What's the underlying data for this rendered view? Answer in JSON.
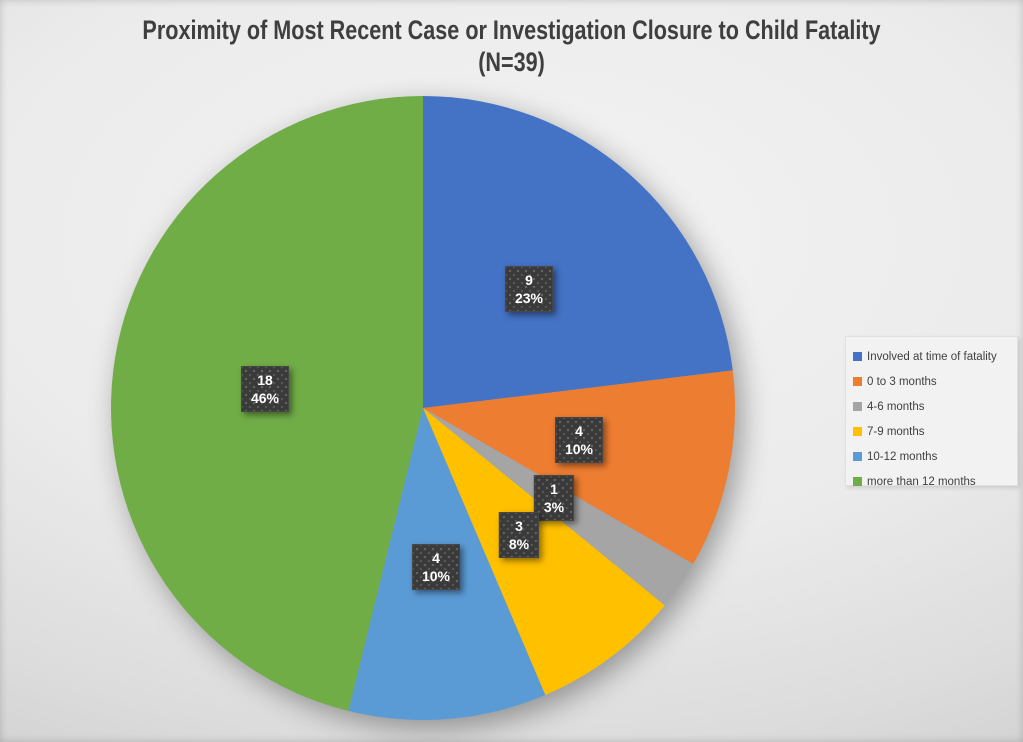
{
  "title": {
    "line1": "Proximity of Most Recent Case or Investigation Closure to Child Fatality",
    "line2": "(N=39)"
  },
  "chart_data": {
    "type": "pie",
    "title": "Proximity of Most Recent Case or Investigation Closure to Child Fatality (N=39)",
    "n_total": 39,
    "start_angle_deg": 0,
    "direction": "clockwise",
    "legend_position": "right",
    "data_label_style": {
      "box_color": "#3a3a3a",
      "text_color": "#ffffff",
      "shows": [
        "value",
        "percent"
      ]
    },
    "slices": [
      {
        "label": "Involved at time of fatality",
        "value": 9,
        "pct": "23%",
        "color": "#4472C4"
      },
      {
        "label": "0 to 3 months",
        "value": 4,
        "pct": "10%",
        "color": "#ED7D31"
      },
      {
        "label": "4-6 months",
        "value": 1,
        "pct": "3%",
        "color": "#A5A5A5"
      },
      {
        "label": "7-9 months",
        "value": 3,
        "pct": "8%",
        "color": "#FFC000"
      },
      {
        "label": "10-12 months",
        "value": 4,
        "pct": "10%",
        "color": "#5B9BD5"
      },
      {
        "label": "more than 12 months",
        "value": 18,
        "pct": "46%",
        "color": "#70AD47"
      }
    ]
  }
}
